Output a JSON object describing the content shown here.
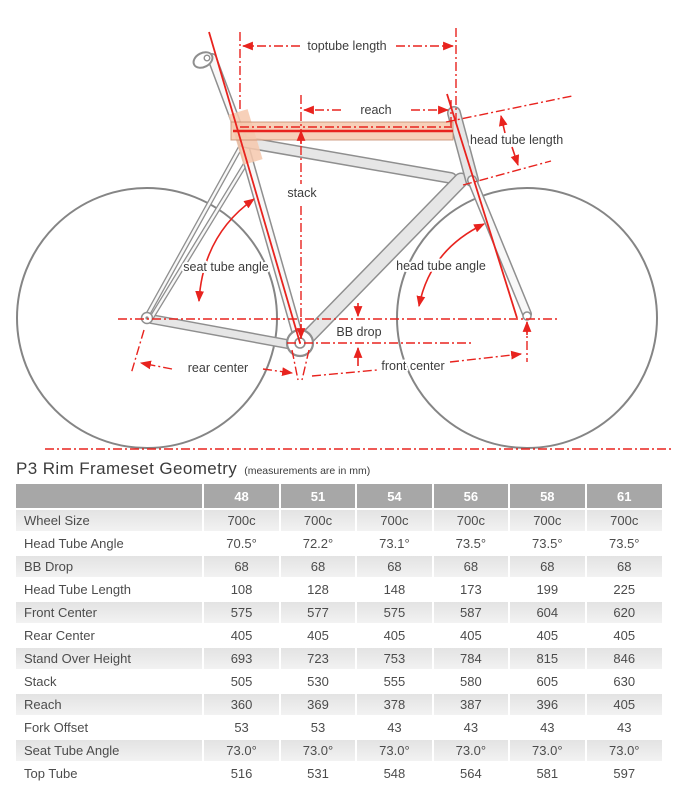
{
  "diagram": {
    "labels": {
      "toptube_length": "toptube length",
      "reach": "reach",
      "head_tube_length": "head tube length",
      "stack": "stack",
      "seat_tube_angle": "seat tube angle",
      "head_tube_angle": "head tube angle",
      "bb_drop": "BB drop",
      "rear_center": "rear center",
      "front_center": "front center"
    },
    "colors": {
      "dimension_red": "#e8231e",
      "tube_fill": "#e6e6e6",
      "tube_outline": "#8f8f8f",
      "highlight_pink": "#f6c8ad"
    }
  },
  "table": {
    "title": "P3 Rim Frameset Geometry",
    "subtitle": "(measurements are in mm)",
    "columns": [
      "48",
      "51",
      "54",
      "56",
      "58",
      "61"
    ],
    "rows": [
      {
        "label": "Wheel Size",
        "values": [
          "700c",
          "700c",
          "700c",
          "700c",
          "700c",
          "700c"
        ]
      },
      {
        "label": "Head Tube Angle",
        "values": [
          "70.5°",
          "72.2°",
          "73.1°",
          "73.5°",
          "73.5°",
          "73.5°"
        ]
      },
      {
        "label": "BB Drop",
        "values": [
          "68",
          "68",
          "68",
          "68",
          "68",
          "68"
        ]
      },
      {
        "label": "Head Tube Length",
        "values": [
          "108",
          "128",
          "148",
          "173",
          "199",
          "225"
        ]
      },
      {
        "label": "Front Center",
        "values": [
          "575",
          "577",
          "575",
          "587",
          "604",
          "620"
        ]
      },
      {
        "label": "Rear Center",
        "values": [
          "405",
          "405",
          "405",
          "405",
          "405",
          "405"
        ]
      },
      {
        "label": "Stand Over Height",
        "values": [
          "693",
          "723",
          "753",
          "784",
          "815",
          "846"
        ]
      },
      {
        "label": "Stack",
        "values": [
          "505",
          "530",
          "555",
          "580",
          "605",
          "630"
        ]
      },
      {
        "label": "Reach",
        "values": [
          "360",
          "369",
          "378",
          "387",
          "396",
          "405"
        ]
      },
      {
        "label": "Fork Offset",
        "values": [
          "53",
          "53",
          "43",
          "43",
          "43",
          "43"
        ]
      },
      {
        "label": "Seat Tube Angle",
        "values": [
          "73.0°",
          "73.0°",
          "73.0°",
          "73.0°",
          "73.0°",
          "73.0°"
        ]
      },
      {
        "label": "Top Tube",
        "values": [
          "516",
          "531",
          "548",
          "564",
          "581",
          "597"
        ]
      }
    ]
  }
}
